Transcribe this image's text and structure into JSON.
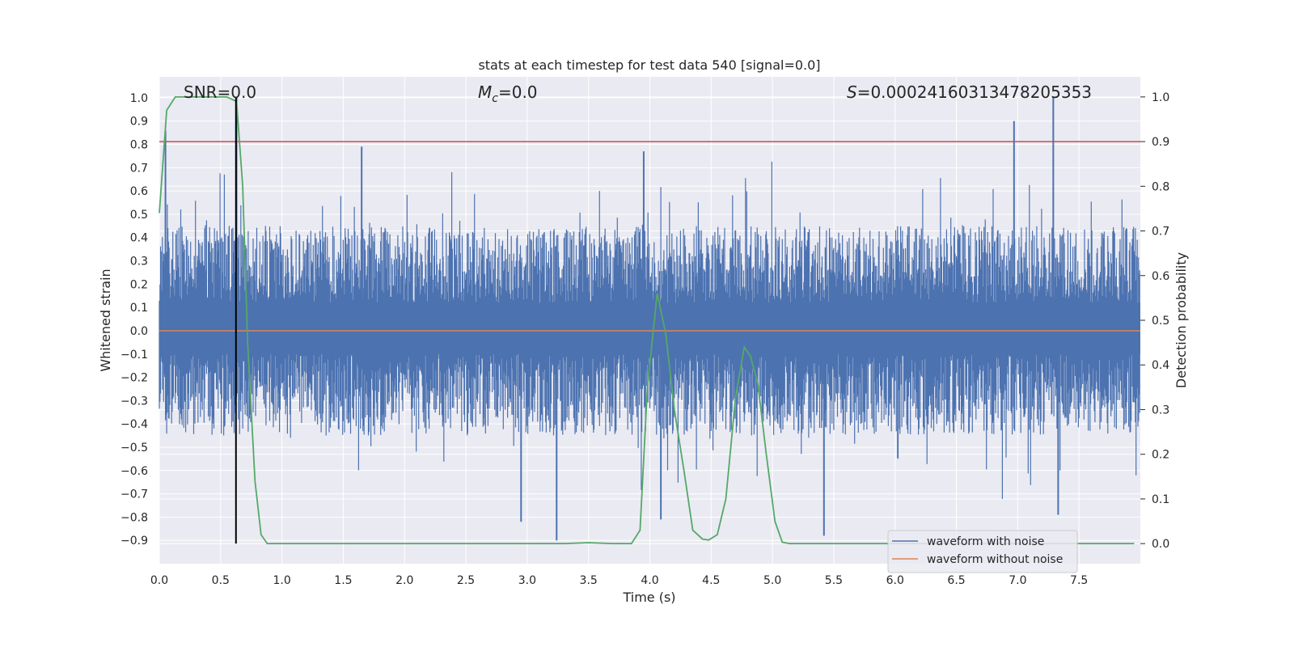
{
  "chart_data": {
    "type": "line",
    "title": "stats at each timestep for test data 540 [signal=0.0]",
    "xlabel": "Time (s)",
    "ylabel_left": "Whitened strain",
    "ylabel_right": "Detection probability",
    "xlim": [
      0.0,
      8.0
    ],
    "ylim_left": [
      -1.0,
      1.09
    ],
    "ylim_right": [
      -0.045,
      1.045
    ],
    "x_ticks": [
      "0.0",
      "0.5",
      "1.0",
      "1.5",
      "2.0",
      "2.5",
      "3.0",
      "3.5",
      "4.0",
      "4.5",
      "5.0",
      "5.5",
      "6.0",
      "6.5",
      "7.0",
      "7.5"
    ],
    "y_ticks_left": [
      "1.0",
      "0.9",
      "0.8",
      "0.7",
      "0.6",
      "0.5",
      "0.4",
      "0.3",
      "0.2",
      "0.1",
      "0.0",
      "−0.1",
      "−0.2",
      "−0.3",
      "−0.4",
      "−0.5",
      "−0.6",
      "−0.7",
      "−0.8",
      "−0.9"
    ],
    "y_ticks_right": [
      "1.0",
      "0.9",
      "0.8",
      "0.7",
      "0.6",
      "0.5",
      "0.4",
      "0.3",
      "0.2",
      "0.1",
      "0.0"
    ],
    "grid": true,
    "legend_position": "lower-right",
    "annotations": {
      "snr": "SNR=0.0",
      "mc_symbol": "M",
      "mc_sub": "c",
      "mc_value": "=0.0",
      "s_symbol": "S",
      "s_value": "=0.00024160313478205353"
    },
    "threshold_probability": 0.9,
    "marker_time": 0.625,
    "series": [
      {
        "name": "waveform with noise",
        "axis": "left",
        "color": "#4c72b0",
        "description_bounds": {
          "typical_max": 0.45,
          "typical_min": -0.45
        },
        "notable_peaks": [
          {
            "x": 0.05,
            "y": 0.86
          },
          {
            "x": 0.63,
            "y": 1.0
          },
          {
            "x": 1.65,
            "y": 0.79
          },
          {
            "x": 3.95,
            "y": 0.77
          },
          {
            "x": 6.97,
            "y": 0.9
          },
          {
            "x": 7.29,
            "y": 1.0
          }
        ],
        "notable_troughs": [
          {
            "x": 3.24,
            "y": -0.9
          },
          {
            "x": 4.09,
            "y": -0.81
          },
          {
            "x": 5.42,
            "y": -0.88
          },
          {
            "x": 7.33,
            "y": -0.79
          },
          {
            "x": 2.95,
            "y": -0.82
          }
        ]
      },
      {
        "name": "waveform without noise",
        "axis": "left",
        "color": "#dd8452",
        "x": [
          0.0,
          8.0
        ],
        "y": [
          0.0,
          0.0
        ]
      },
      {
        "name": "",
        "axis": "right",
        "color": "#55a868",
        "x": [
          0.0,
          0.06,
          0.13,
          0.2,
          0.3,
          0.45,
          0.55,
          0.63,
          0.68,
          0.72,
          0.78,
          0.83,
          0.88,
          1.0,
          1.5,
          2.0,
          2.5,
          3.0,
          3.3,
          3.5,
          3.7,
          3.85,
          3.92,
          3.98,
          4.06,
          4.13,
          4.2,
          4.28,
          4.35,
          4.43,
          4.48,
          4.55,
          4.62,
          4.7,
          4.77,
          4.82,
          4.88,
          4.95,
          5.02,
          5.08,
          5.14,
          5.2,
          5.5,
          6.0,
          6.5,
          7.0,
          7.5,
          7.95
        ],
        "y": [
          0.74,
          0.97,
          1.0,
          1.0,
          1.0,
          1.0,
          1.0,
          0.99,
          0.8,
          0.45,
          0.14,
          0.02,
          0.0,
          0.0,
          0.0,
          0.0,
          0.0,
          0.0,
          0.0,
          0.002,
          0.0,
          0.0,
          0.03,
          0.35,
          0.56,
          0.47,
          0.3,
          0.16,
          0.03,
          0.01,
          0.008,
          0.02,
          0.1,
          0.33,
          0.44,
          0.42,
          0.36,
          0.2,
          0.05,
          0.003,
          0.0,
          0.0,
          0.0,
          0.0,
          0.0,
          0.0,
          0.0,
          0.0
        ]
      },
      {
        "name": "",
        "axis": "right",
        "color": "#c44e52",
        "x": [
          0.0,
          8.0
        ],
        "y": [
          0.9,
          0.9
        ]
      }
    ]
  }
}
